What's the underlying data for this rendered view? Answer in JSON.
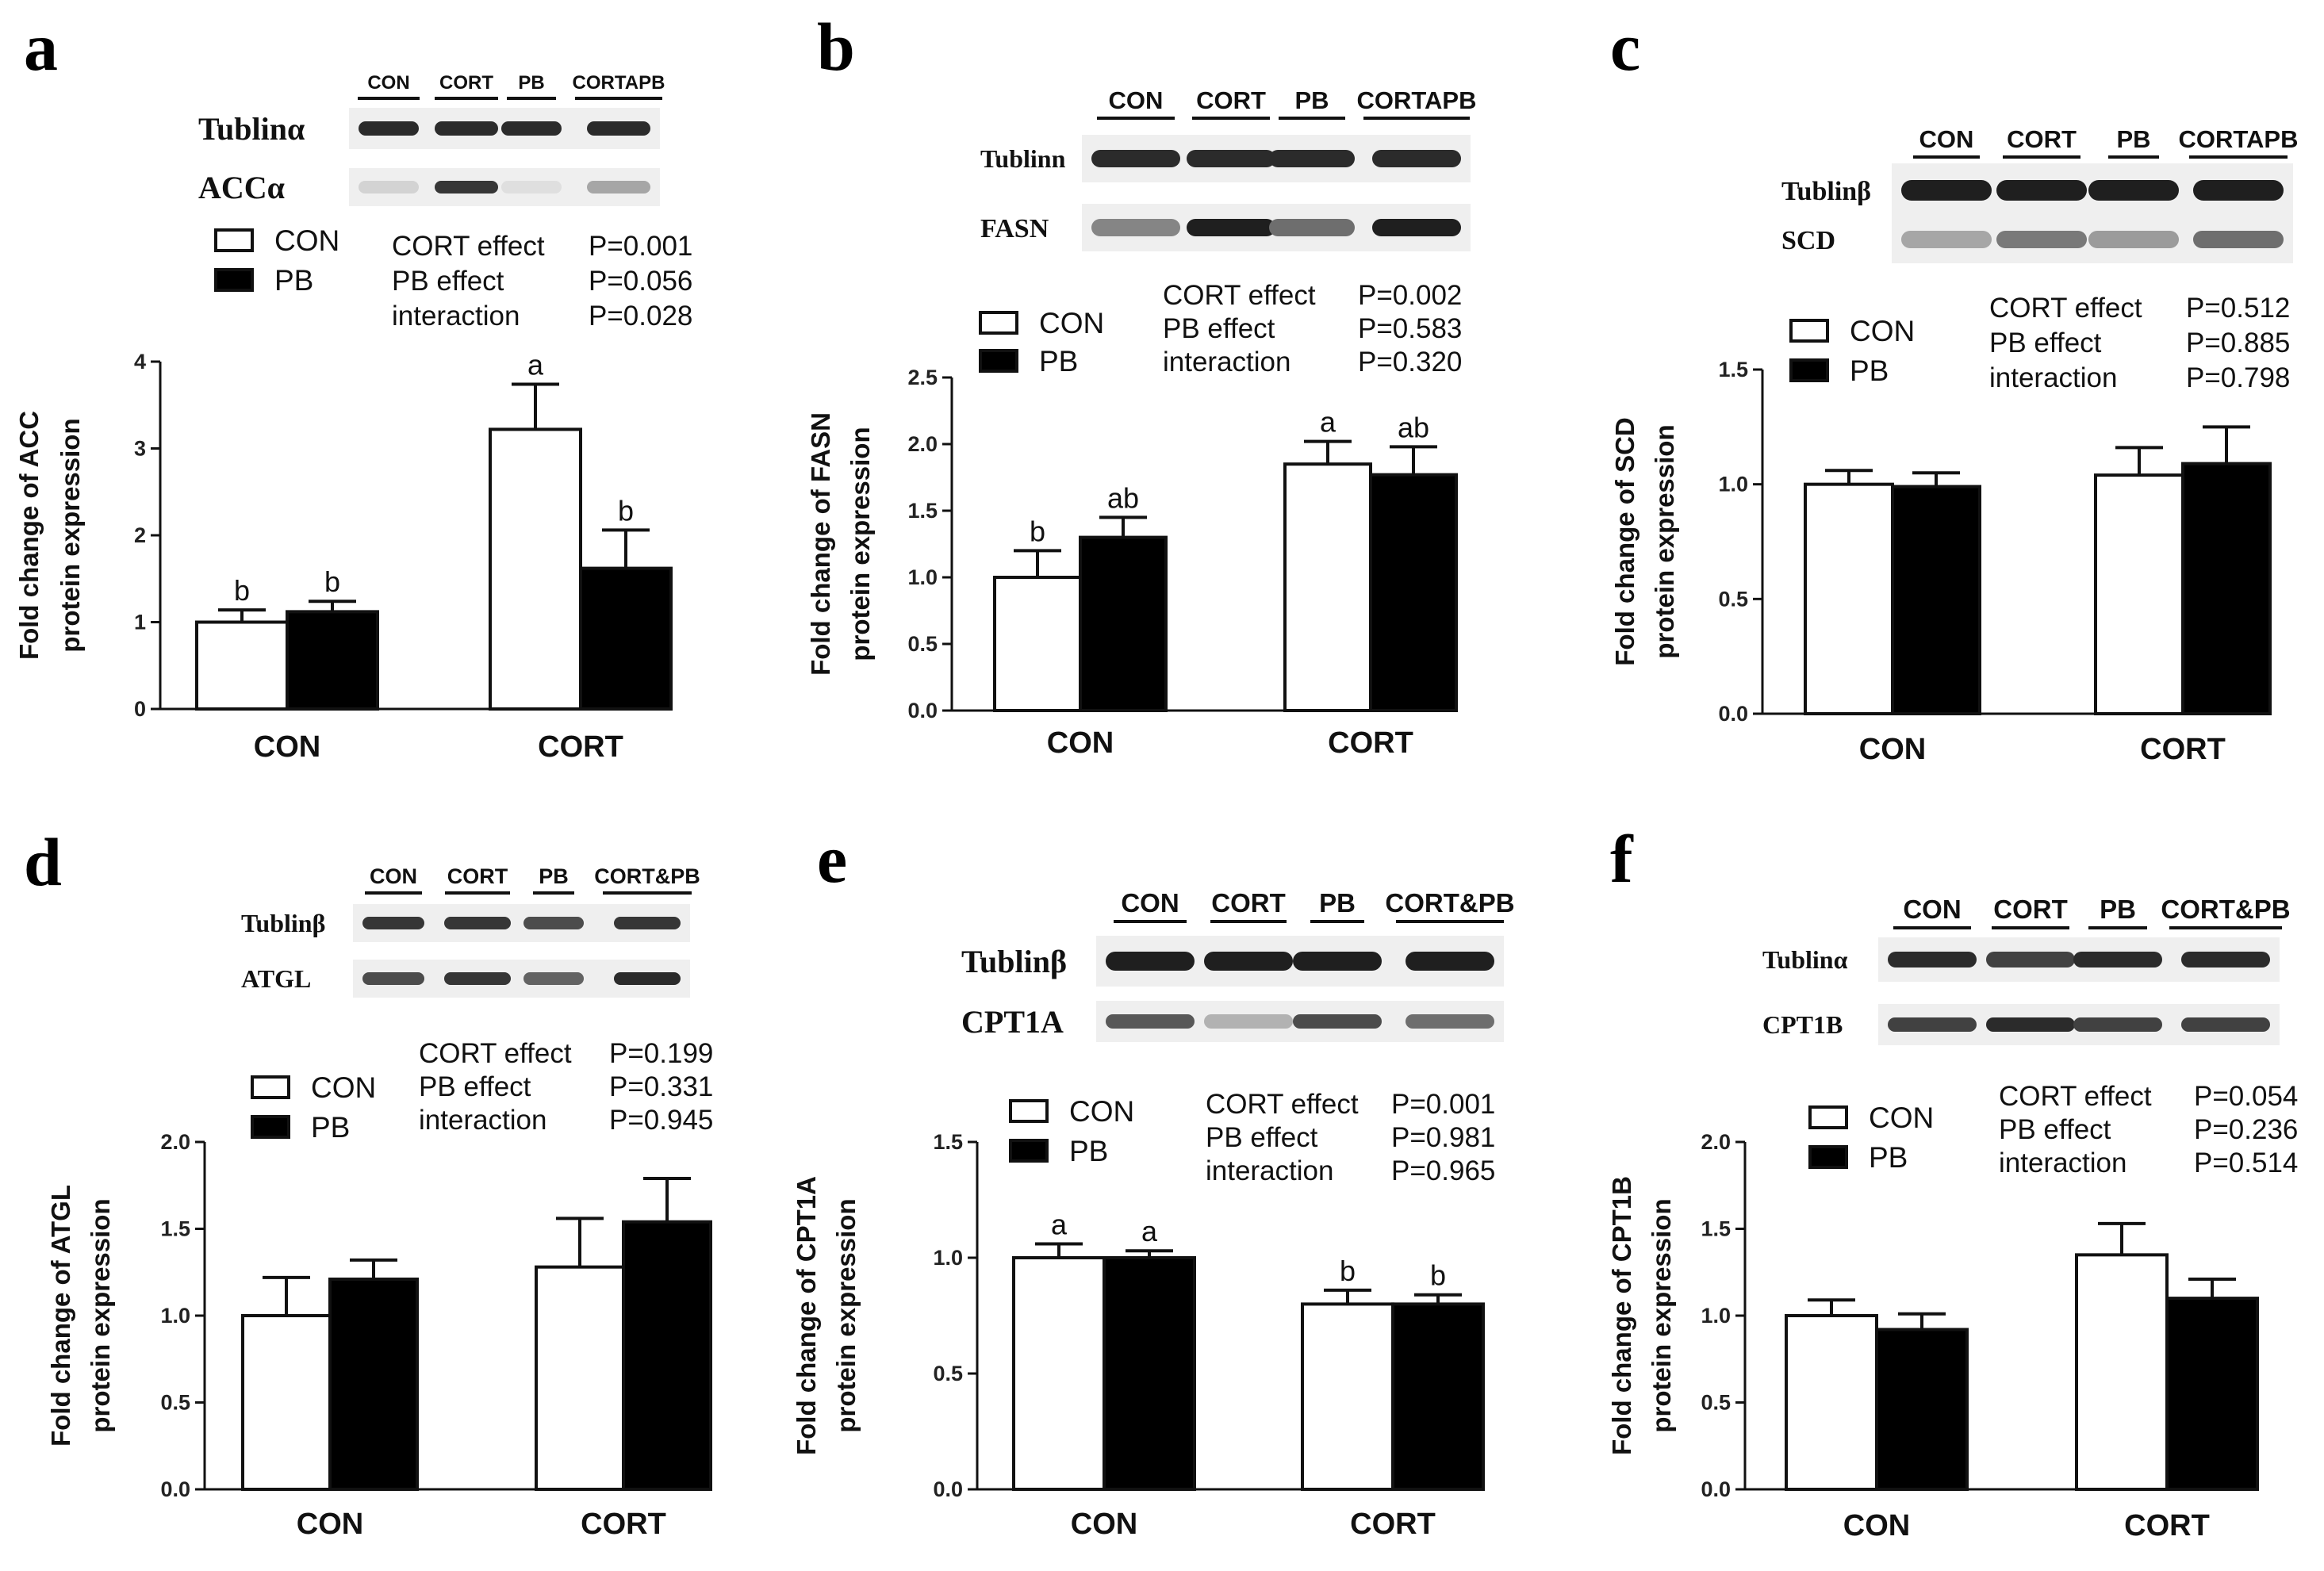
{
  "colors": {
    "con_bar": "#ffffff",
    "pb_bar": "#000000",
    "axis": "#111111",
    "band": "#1a1a1a",
    "blot_bg": "#efefef"
  },
  "chart_data": [
    {
      "type": "bar",
      "panel": "a",
      "categories": [
        "CON",
        "CORT"
      ],
      "series": [
        {
          "name": "CON",
          "values": [
            1.0,
            3.22
          ],
          "errors": [
            0.14,
            0.52
          ]
        },
        {
          "name": "PB",
          "values": [
            1.12,
            1.62
          ],
          "errors": [
            0.12,
            0.44
          ]
        }
      ],
      "sig_letters": [
        [
          "b",
          "b"
        ],
        [
          "a",
          "b"
        ]
      ],
      "ylabel": "Fold change of ACC protein expression",
      "ylabel_lines": [
        "Fold change of ACC",
        "protein expression"
      ],
      "ylim": [
        0,
        4
      ],
      "yticks": [
        "0",
        "1",
        "2",
        "3",
        "4"
      ],
      "stats": [
        {
          "label": "CORT effect",
          "p": "P=0.001"
        },
        {
          "label": "PB effect",
          "p": "P=0.056"
        },
        {
          "label": "interaction",
          "p": "P=0.028"
        }
      ],
      "blot": {
        "lanes": [
          "CON",
          "CORT",
          "PB",
          "CORTAPB"
        ],
        "rows": [
          {
            "protein": "Tublinα",
            "intensity": [
              0.9,
              0.9,
              0.9,
              0.9
            ]
          },
          {
            "protein": "ACCα",
            "intensity": [
              0.15,
              0.85,
              0.1,
              0.35
            ]
          }
        ]
      }
    },
    {
      "type": "bar",
      "panel": "b",
      "categories": [
        "CON",
        "CORT"
      ],
      "series": [
        {
          "name": "CON",
          "values": [
            1.0,
            1.85
          ],
          "errors": [
            0.2,
            0.17
          ]
        },
        {
          "name": "PB",
          "values": [
            1.3,
            1.77
          ],
          "errors": [
            0.15,
            0.21
          ]
        }
      ],
      "sig_letters": [
        [
          "b",
          "ab"
        ],
        [
          "a",
          "ab"
        ]
      ],
      "ylabel": "Fold change of FASN protein expression",
      "ylabel_lines": [
        "Fold change of FASN",
        "protein expression"
      ],
      "ylim": [
        0,
        2.5
      ],
      "yticks": [
        "0.0",
        "0.5",
        "1.0",
        "1.5",
        "2.0",
        "2.5"
      ],
      "stats": [
        {
          "label": "CORT effect",
          "p": "P=0.002"
        },
        {
          "label": "PB effect",
          "p": "P=0.583"
        },
        {
          "label": "interaction",
          "p": "P=0.320"
        }
      ],
      "blot": {
        "lanes": [
          "CON",
          "CORT",
          "PB",
          "CORTAPB"
        ],
        "rows": [
          {
            "protein": "Tublinn",
            "intensity": [
              0.9,
              0.9,
              0.9,
              0.9
            ]
          },
          {
            "protein": "FASN",
            "intensity": [
              0.5,
              0.95,
              0.6,
              0.95
            ]
          }
        ]
      }
    },
    {
      "type": "bar",
      "panel": "c",
      "categories": [
        "CON",
        "CORT"
      ],
      "series": [
        {
          "name": "CON",
          "values": [
            1.0,
            1.04
          ],
          "errors": [
            0.06,
            0.12
          ]
        },
        {
          "name": "PB",
          "values": [
            0.99,
            1.09
          ],
          "errors": [
            0.06,
            0.16
          ]
        }
      ],
      "sig_letters": [],
      "ylabel": "Fold change of SCD protein expression",
      "ylabel_lines": [
        "Fold change of SCD",
        "protein expression"
      ],
      "ylim": [
        0,
        1.5
      ],
      "yticks": [
        "0.0",
        "0.5",
        "1.0",
        "1.5"
      ],
      "stats": [
        {
          "label": "CORT effect",
          "p": "P=0.512"
        },
        {
          "label": "PB effect",
          "p": "P=0.885"
        },
        {
          "label": "interaction",
          "p": "P=0.798"
        }
      ],
      "blot": {
        "lanes": [
          "CON",
          "CORT",
          "PB",
          "CORTAPB"
        ],
        "rows": [
          {
            "protein": "Tublinβ",
            "intensity": [
              0.95,
              0.95,
              0.95,
              0.95
            ]
          },
          {
            "protein": "SCD",
            "intensity": [
              0.35,
              0.55,
              0.4,
              0.6
            ]
          }
        ]
      }
    },
    {
      "type": "bar",
      "panel": "d",
      "categories": [
        "CON",
        "CORT"
      ],
      "series": [
        {
          "name": "CON",
          "values": [
            1.0,
            1.28
          ],
          "errors": [
            0.22,
            0.28
          ]
        },
        {
          "name": "PB",
          "values": [
            1.21,
            1.54
          ],
          "errors": [
            0.11,
            0.25
          ]
        }
      ],
      "sig_letters": [],
      "ylabel": "Fold change of ATGL protein expression",
      "ylabel_lines": [
        "Fold change of ATGL",
        "protein expression"
      ],
      "ylim": [
        0,
        2.0
      ],
      "yticks": [
        "0.0",
        "0.5",
        "1.0",
        "1.5",
        "2.0"
      ],
      "stats": [
        {
          "label": "CORT effect",
          "p": "P=0.199"
        },
        {
          "label": "PB effect",
          "p": "P=0.331"
        },
        {
          "label": "interaction",
          "p": "P=0.945"
        }
      ],
      "blot": {
        "lanes": [
          "CON",
          "CORT",
          "PB",
          "CORT&PB"
        ],
        "rows": [
          {
            "protein": "Tublinβ",
            "intensity": [
              0.85,
              0.85,
              0.75,
              0.85
            ]
          },
          {
            "protein": "ATGL",
            "intensity": [
              0.75,
              0.85,
              0.65,
              0.9
            ]
          }
        ]
      }
    },
    {
      "type": "bar",
      "panel": "e",
      "categories": [
        "CON",
        "CORT"
      ],
      "series": [
        {
          "name": "CON",
          "values": [
            1.0,
            0.8
          ],
          "errors": [
            0.06,
            0.06
          ]
        },
        {
          "name": "PB",
          "values": [
            1.0,
            0.8
          ],
          "errors": [
            0.03,
            0.04
          ]
        }
      ],
      "sig_letters": [
        [
          "a",
          "a"
        ],
        [
          "b",
          "b"
        ]
      ],
      "ylabel": "Fold change of CPT1A protein expression",
      "ylabel_lines": [
        "Fold change of CPT1A",
        "protein expression"
      ],
      "ylim": [
        0,
        1.5
      ],
      "yticks": [
        "0.0",
        "0.5",
        "1.0",
        "1.5"
      ],
      "stats": [
        {
          "label": "CORT effect",
          "p": "P=0.001"
        },
        {
          "label": "PB effect",
          "p": "P=0.981"
        },
        {
          "label": "interaction",
          "p": "P=0.965"
        }
      ],
      "blot": {
        "lanes": [
          "CON",
          "CORT",
          "PB",
          "CORT&PB"
        ],
        "rows": [
          {
            "protein": "Tublinβ",
            "intensity": [
              0.95,
              0.95,
              0.95,
              0.95
            ]
          },
          {
            "protein": "CPT1A",
            "intensity": [
              0.7,
              0.3,
              0.75,
              0.6
            ]
          }
        ]
      }
    },
    {
      "type": "bar",
      "panel": "f",
      "categories": [
        "CON",
        "CORT"
      ],
      "series": [
        {
          "name": "CON",
          "values": [
            1.0,
            1.35
          ],
          "errors": [
            0.09,
            0.18
          ]
        },
        {
          "name": "PB",
          "values": [
            0.92,
            1.1
          ],
          "errors": [
            0.09,
            0.11
          ]
        }
      ],
      "sig_letters": [],
      "ylabel": "Fold change of CPT1B protein expression",
      "ylabel_lines": [
        "Fold change of CPT1B",
        "protein expression"
      ],
      "ylim": [
        0,
        2.0
      ],
      "yticks": [
        "0.0",
        "0.5",
        "1.0",
        "1.5",
        "2.0"
      ],
      "stats": [
        {
          "label": "CORT effect",
          "p": "P=0.054"
        },
        {
          "label": "PB effect",
          "p": "P=0.236"
        },
        {
          "label": "interaction",
          "p": "P=0.514"
        }
      ],
      "blot": {
        "lanes": [
          "CON",
          "CORT",
          "PB",
          "CORT&PB"
        ],
        "rows": [
          {
            "protein": "Tublinα",
            "intensity": [
              0.9,
              0.8,
              0.9,
              0.9
            ]
          },
          {
            "protein": "CPT1B",
            "intensity": [
              0.8,
              0.9,
              0.8,
              0.8
            ]
          }
        ]
      }
    }
  ],
  "legend": {
    "con_label": "CON",
    "pb_label": "PB"
  }
}
